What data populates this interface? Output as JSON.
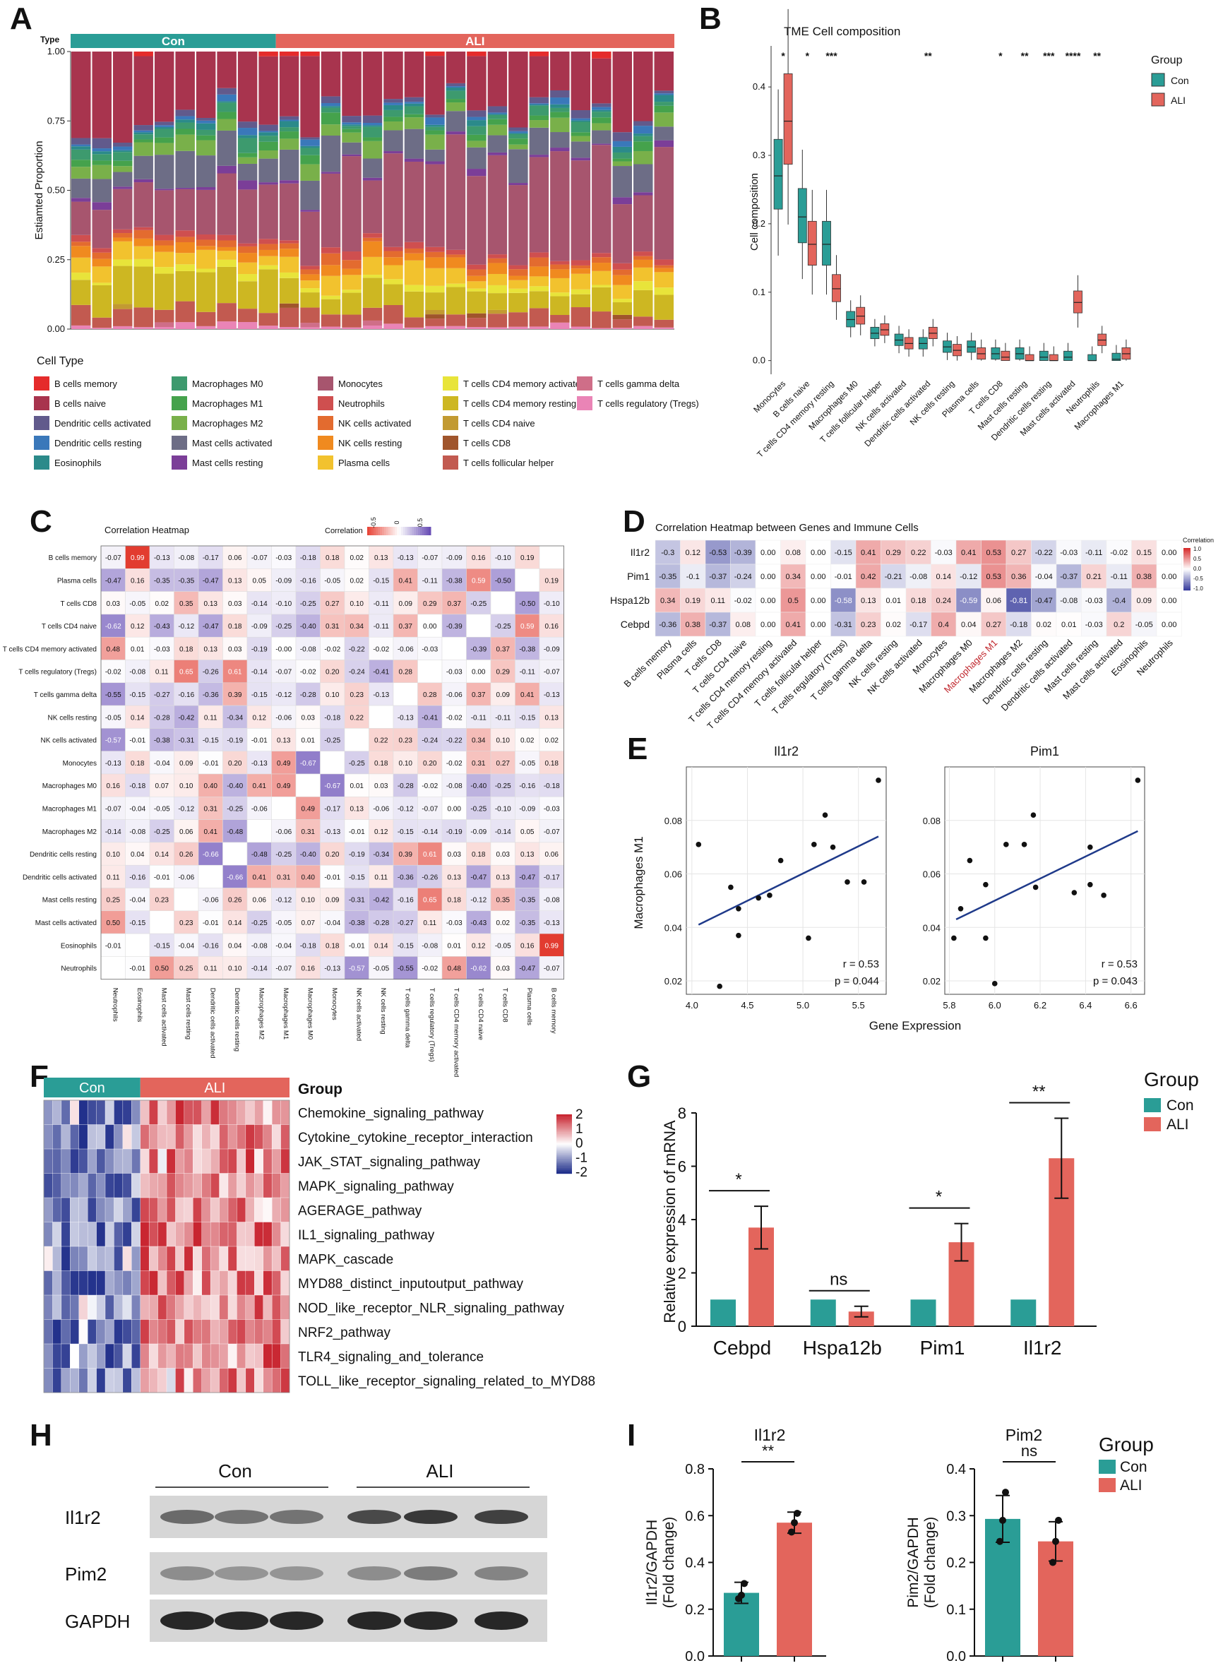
{
  "panel_labels": [
    "A",
    "B",
    "C",
    "D",
    "E",
    "F",
    "G",
    "H",
    "I"
  ],
  "colors": {
    "con": "#2a9d96",
    "ali": "#e3655c",
    "blue": "#3b4fa0",
    "red": "#d23a3a"
  },
  "panelA": {
    "type_label": "Type",
    "groups": [
      "Con",
      "ALI"
    ],
    "ylabel": "Estiamted Proportion",
    "yticks": [
      "1.00",
      "0.75",
      "0.50",
      "0.25",
      "0.00"
    ],
    "legend_title": "Cell Type",
    "legend": [
      {
        "name": "B cells memory",
        "color": "#e52b2b"
      },
      {
        "name": "B cells naive",
        "color": "#a8344e"
      },
      {
        "name": "Dendritic cells activated",
        "color": "#615a8c"
      },
      {
        "name": "Dendritic cells resting",
        "color": "#3a78ba"
      },
      {
        "name": "Eosinophils",
        "color": "#2b8a8a"
      },
      {
        "name": "Macrophages M0",
        "color": "#3d9a6e"
      },
      {
        "name": "Macrophages M1",
        "color": "#45a24c"
      },
      {
        "name": "Macrophages M2",
        "color": "#79b04a"
      },
      {
        "name": "Mast cells activated",
        "color": "#6d6d86"
      },
      {
        "name": "Mast cells resting",
        "color": "#7b3e98"
      },
      {
        "name": "Monocytes",
        "color": "#a7556e"
      },
      {
        "name": "Neutrophils",
        "color": "#cf4f4f"
      },
      {
        "name": "NK cells activated",
        "color": "#e36b2f"
      },
      {
        "name": "NK cells resting",
        "color": "#f08a1f"
      },
      {
        "name": "Plasma cells",
        "color": "#f2c22e"
      },
      {
        "name": "T cells CD4 memory activated",
        "color": "#e8e43a"
      },
      {
        "name": "T cells CD4 memory resting",
        "color": "#cdb722"
      },
      {
        "name": "T cells CD4 naive",
        "color": "#c29a32"
      },
      {
        "name": "T cells CD8",
        "color": "#a0552c"
      },
      {
        "name": "T cells follicular helper",
        "color": "#c25a50"
      },
      {
        "name": "T cells gamma delta",
        "color": "#cf6e88"
      },
      {
        "name": "T cells regulatory (Tregs)",
        "color": "#ea84b6"
      }
    ]
  },
  "panelB": {
    "title": "TME Cell composition",
    "ylabel": "Cell composition",
    "legend_title": "Group",
    "legend": [
      "Con",
      "ALI"
    ],
    "chart_data": {
      "type": "box",
      "categories": [
        "Monocytes",
        "B cells naive",
        "T cells CD4 memory resting",
        "Macrophages M0",
        "T cells follicular helper",
        "NK cells activated",
        "Dendritic cells activated",
        "NK cells resting",
        "Plasma cells",
        "T cells CD8",
        "Mast cells resting",
        "Dendritic cells resting",
        "Mast cells activated",
        "Neutrophils",
        "Macrophages M1"
      ],
      "significance": [
        "*",
        "*",
        "***",
        "",
        "",
        "",
        "**",
        "",
        "",
        "*",
        "**",
        "***",
        "****",
        "**",
        ""
      ],
      "yticks": [
        0.0,
        0.1,
        0.2,
        0.3,
        0.4
      ],
      "ylim": [
        -0.02,
        0.46
      ],
      "con_median": [
        0.27,
        0.21,
        0.17,
        0.06,
        0.04,
        0.03,
        0.025,
        0.02,
        0.02,
        0.01,
        0.01,
        0.005,
        0.005,
        0.0,
        0.002
      ],
      "ali_median": [
        0.35,
        0.17,
        0.105,
        0.065,
        0.045,
        0.025,
        0.04,
        0.015,
        0.01,
        0.005,
        0.0,
        0.0,
        0.085,
        0.03,
        0.01
      ]
    }
  },
  "panelC": {
    "title": "Correlation Heatmap",
    "legend_label": "Correlation",
    "legend_ticks": [
      "-0.5",
      "0",
      "0.5"
    ],
    "rows": [
      "B cells memory",
      "Plasma cells",
      "T cells CD8",
      "T cells CD4 naive",
      "T cells CD4 memory activated",
      "T cells regulatory (Tregs)",
      "T cells gamma delta",
      "NK cells resting",
      "NK cells activated",
      "Monocytes",
      "Macrophages M0",
      "Macrophages M1",
      "Macrophages M2",
      "Dendritic cells resting",
      "Dendritic cells activated",
      "Mast cells resting",
      "Mast cells activated",
      "Eosinophils",
      "Neutrophils"
    ],
    "cols": [
      "Neutrophils",
      "Eosinophils",
      "Mast cells activated",
      "Mast cells resting",
      "Dendritic cells activated",
      "Dendritic cells resting",
      "Macrophages M2",
      "Macrophages M1",
      "Macrophages M0",
      "Monocytes",
      "NK cells activated",
      "NK cells resting",
      "T cells gamma delta",
      "T cells regulatory (Tregs)",
      "T cells CD4 memory activated",
      "T cells CD4 naive",
      "T cells CD8",
      "Plasma cells",
      "B cells memory"
    ],
    "values": [
      [
        "-0.07",
        "0.99",
        "-0.13",
        "-0.08",
        "-0.17",
        "0.06",
        "-0.07",
        "-0.03",
        "-0.18",
        "0.18",
        "0.02",
        "0.13",
        "-0.13",
        "-0.07",
        "-0.09",
        "0.16",
        "-0.10",
        "0.19",
        ""
      ],
      [
        "-0.47",
        "0.16",
        "-0.35",
        "-0.35",
        "-0.47",
        "0.13",
        "0.05",
        "-0.09",
        "-0.16",
        "-0.05",
        "0.02",
        "-0.15",
        "0.41",
        "-0.11",
        "-0.38",
        "0.59",
        "-0.50",
        "",
        "0.19"
      ],
      [
        "0.03",
        "-0.05",
        "0.02",
        "0.35",
        "0.13",
        "0.03",
        "-0.14",
        "-0.10",
        "-0.25",
        "0.27",
        "0.10",
        "-0.11",
        "0.09",
        "0.29",
        "0.37",
        "-0.25",
        "",
        "-0.50",
        "-0.10"
      ],
      [
        "-0.62",
        "0.12",
        "-0.43",
        "-0.12",
        "-0.47",
        "0.18",
        "-0.09",
        "-0.25",
        "-0.40",
        "0.31",
        "0.34",
        "-0.11",
        "0.37",
        "0.00",
        "-0.39",
        "",
        "-0.25",
        "0.59",
        "0.16"
      ],
      [
        "0.48",
        "0.01",
        "-0.03",
        "0.18",
        "0.13",
        "0.03",
        "-0.19",
        "-0.00",
        "-0.08",
        "-0.02",
        "-0.22",
        "-0.02",
        "-0.06",
        "-0.03",
        "",
        "-0.39",
        "0.37",
        "-0.38",
        "-0.09"
      ],
      [
        "-0.02",
        "-0.08",
        "0.11",
        "0.65",
        "-0.26",
        "0.61",
        "-0.14",
        "-0.07",
        "-0.02",
        "0.20",
        "-0.24",
        "-0.41",
        "0.28",
        "",
        "-0.03",
        "0.00",
        "0.29",
        "-0.11",
        "-0.07"
      ],
      [
        "-0.55",
        "-0.15",
        "-0.27",
        "-0.16",
        "-0.36",
        "0.39",
        "-0.15",
        "-0.12",
        "-0.28",
        "0.10",
        "0.23",
        "-0.13",
        "",
        "0.28",
        "-0.06",
        "0.37",
        "0.09",
        "0.41",
        "-0.13"
      ],
      [
        "-0.05",
        "0.14",
        "-0.28",
        "-0.42",
        "0.11",
        "-0.34",
        "0.12",
        "-0.06",
        "0.03",
        "-0.18",
        "0.22",
        "",
        "-0.13",
        "-0.41",
        "-0.02",
        "-0.11",
        "-0.11",
        "-0.15",
        "0.13"
      ],
      [
        "-0.57",
        "-0.01",
        "-0.38",
        "-0.31",
        "-0.15",
        "-0.19",
        "-0.01",
        "0.13",
        "0.01",
        "-0.25",
        "",
        "0.22",
        "0.23",
        "-0.24",
        "-0.22",
        "0.34",
        "0.10",
        "0.02",
        "0.02"
      ],
      [
        "-0.13",
        "0.18",
        "-0.04",
        "0.09",
        "-0.01",
        "0.20",
        "-0.13",
        "0.49",
        "-0.67",
        "",
        "-0.25",
        "0.18",
        "0.10",
        "0.20",
        "-0.02",
        "0.31",
        "0.27",
        "-0.05",
        "0.18"
      ],
      [
        "0.16",
        "-0.18",
        "0.07",
        "0.10",
        "0.40",
        "-0.40",
        "0.41",
        "0.49",
        "",
        "-0.67",
        "0.01",
        "0.03",
        "-0.28",
        "-0.02",
        "-0.08",
        "-0.40",
        "-0.25",
        "-0.16",
        "-0.18"
      ],
      [
        "-0.07",
        "-0.04",
        "-0.05",
        "-0.12",
        "0.31",
        "-0.25",
        "-0.06",
        "",
        "0.49",
        "-0.17",
        "0.13",
        "-0.06",
        "-0.12",
        "-0.07",
        "0.00",
        "-0.25",
        "-0.10",
        "-0.09",
        "-0.03"
      ],
      [
        "-0.14",
        "-0.08",
        "-0.25",
        "0.06",
        "0.41",
        "-0.48",
        "",
        "-0.06",
        "0.31",
        "-0.13",
        "-0.01",
        "0.12",
        "-0.15",
        "-0.14",
        "-0.19",
        "-0.09",
        "-0.14",
        "0.05",
        "-0.07"
      ],
      [
        "0.10",
        "0.04",
        "0.14",
        "0.26",
        "-0.66",
        "",
        "-0.48",
        "-0.25",
        "-0.40",
        "0.20",
        "-0.19",
        "-0.34",
        "0.39",
        "0.61",
        "0.03",
        "0.18",
        "0.03",
        "0.13",
        "0.06"
      ],
      [
        "0.11",
        "-0.16",
        "-0.01",
        "-0.06",
        "",
        "-0.66",
        "0.41",
        "0.31",
        "0.40",
        "-0.01",
        "-0.15",
        "0.11",
        "-0.36",
        "-0.26",
        "0.13",
        "-0.47",
        "0.13",
        "-0.47",
        "-0.17"
      ],
      [
        "0.25",
        "-0.04",
        "0.23",
        "",
        "-0.06",
        "0.26",
        "0.06",
        "-0.12",
        "0.10",
        "0.09",
        "-0.31",
        "-0.42",
        "-0.16",
        "0.65",
        "0.18",
        "-0.12",
        "0.35",
        "-0.35",
        "-0.08"
      ],
      [
        "0.50",
        "-0.15",
        "",
        "0.23",
        "-0.01",
        "0.14",
        "-0.25",
        "-0.05",
        "0.07",
        "-0.04",
        "-0.38",
        "-0.28",
        "-0.27",
        "0.11",
        "-0.03",
        "-0.43",
        "0.02",
        "-0.35",
        "-0.13"
      ],
      [
        "-0.01",
        "",
        "-0.15",
        "-0.04",
        "-0.16",
        "0.04",
        "-0.08",
        "-0.04",
        "-0.18",
        "0.18",
        "-0.01",
        "0.14",
        "-0.15",
        "-0.08",
        "0.01",
        "0.12",
        "-0.05",
        "0.16",
        "0.99"
      ],
      [
        "",
        "-0.01",
        "0.50",
        "0.25",
        "0.11",
        "0.10",
        "-0.14",
        "-0.07",
        "0.16",
        "-0.13",
        "-0.57",
        "-0.05",
        "-0.55",
        "-0.02",
        "0.48",
        "-0.62",
        "0.03",
        "-0.47",
        "-0.07"
      ]
    ]
  },
  "panelD": {
    "title": "Correlation Heatmap between Genes and Immune Cells",
    "legend_label": "Correlation",
    "legend_ticks": [
      "1.0",
      "0.5",
      "0.0",
      "-0.5",
      "-1.0"
    ],
    "rows": [
      "Il1r2",
      "Pim1",
      "Hspa12b",
      "Cebpd"
    ],
    "cols": [
      "B cells memory",
      "Plasma cells",
      "T cells CD8",
      "T cells CD4 naive",
      "T cells CD4 memory resting",
      "T cells CD4 memory activated",
      "T cells follicular helper",
      "T cells regulatory (Tregs)",
      "T cells gamma delta",
      "NK cells resting",
      "NK cells activated",
      "Monocytes",
      "Macrophages M0",
      "Macrophages M1",
      "Macrophages M2",
      "Dendritic cells resting",
      "Dendritic cells activated",
      "Mast cells resting",
      "Mast cells activated",
      "Eosinophils",
      "Neutrophils"
    ],
    "highlight_col": "Macrophages M1",
    "values": [
      [
        "-0.3",
        "0.12",
        "-0.53",
        "-0.39",
        "0.00",
        "0.08",
        "0.00",
        "-0.15",
        "0.41",
        "0.29",
        "0.22",
        "-0.03",
        "0.41",
        "0.53",
        "0.27",
        "-0.22",
        "-0.03",
        "-0.11",
        "-0.02",
        "0.15",
        "0.00"
      ],
      [
        "-0.35",
        "-0.1",
        "-0.37",
        "-0.24",
        "0.00",
        "0.34",
        "0.00",
        "-0.01",
        "0.42",
        "-0.21",
        "-0.08",
        "0.14",
        "-0.12",
        "0.53",
        "0.36",
        "-0.04",
        "-0.37",
        "0.21",
        "-0.11",
        "0.38",
        "0.00"
      ],
      [
        "0.34",
        "0.19",
        "0.11",
        "-0.02",
        "0.00",
        "0.5",
        "0.00",
        "-0.58",
        "0.13",
        "0.01",
        "0.18",
        "0.24",
        "-0.59",
        "0.06",
        "-0.81",
        "-0.47",
        "-0.08",
        "-0.03",
        "-0.4",
        "0.09",
        "0.00"
      ],
      [
        "-0.36",
        "0.38",
        "-0.37",
        "0.08",
        "0.00",
        "0.41",
        "0.00",
        "-0.31",
        "0.23",
        "0.02",
        "-0.17",
        "0.4",
        "0.04",
        "0.27",
        "-0.18",
        "0.02",
        "0.01",
        "-0.03",
        "0.2",
        "-0.05",
        "0.00"
      ]
    ]
  },
  "panelE": {
    "ylabel": "Macrophages M1",
    "xlabel": "Gene Expression",
    "plots": [
      {
        "title": "Il1r2",
        "r": "r = 0.53",
        "p": "p = 0.044",
        "xticks": [
          4.0,
          4.5,
          5.0,
          5.5
        ],
        "xlim": [
          3.95,
          5.75
        ],
        "points": [
          [
            4.06,
            0.071
          ],
          [
            4.25,
            0.018
          ],
          [
            4.35,
            0.055
          ],
          [
            4.42,
            0.047
          ],
          [
            4.42,
            0.037
          ],
          [
            4.6,
            0.051
          ],
          [
            4.7,
            0.052
          ],
          [
            4.8,
            0.065
          ],
          [
            5.05,
            0.036
          ],
          [
            5.1,
            0.071
          ],
          [
            5.2,
            0.082
          ],
          [
            5.27,
            0.07
          ],
          [
            5.4,
            0.057
          ],
          [
            5.55,
            0.057
          ],
          [
            5.68,
            0.095
          ]
        ],
        "line": [
          [
            4.06,
            0.041
          ],
          [
            5.68,
            0.074
          ]
        ]
      },
      {
        "title": "Pim1",
        "r": "r = 0.53",
        "p": "p = 0.043",
        "xticks": [
          5.8,
          6.0,
          6.2,
          6.4,
          6.6
        ],
        "xlim": [
          5.78,
          6.66
        ],
        "points": [
          [
            5.82,
            0.036
          ],
          [
            5.85,
            0.047
          ],
          [
            5.89,
            0.065
          ],
          [
            5.96,
            0.056
          ],
          [
            5.96,
            0.036
          ],
          [
            6.0,
            0.019
          ],
          [
            6.05,
            0.071
          ],
          [
            6.13,
            0.071
          ],
          [
            6.17,
            0.082
          ],
          [
            6.18,
            0.055
          ],
          [
            6.35,
            0.053
          ],
          [
            6.42,
            0.07
          ],
          [
            6.42,
            0.056
          ],
          [
            6.48,
            0.052
          ],
          [
            6.63,
            0.095
          ]
        ],
        "line": [
          [
            5.83,
            0.043
          ],
          [
            6.63,
            0.076
          ]
        ]
      }
    ],
    "yticks": [
      0.02,
      0.04,
      0.06,
      0.08
    ],
    "ylim": [
      0.015,
      0.1
    ]
  },
  "panelF": {
    "groups": [
      "Con",
      "ALI"
    ],
    "group_label": "Group",
    "pathways": [
      "Chemokine_signaling_pathway",
      "Cytokine_cytokine_receptor_interaction",
      "JAK_STAT_signaling_pathway",
      "MAPK_signaling_pathway",
      "AGERAGE_pathway",
      "IL1_signaling_pathway",
      "MAPK_cascade",
      "MYD88_distinct_inputoutput_pathway",
      "NOD_like_receptor_NLR_signaling_pathway",
      "NRF2_pathway",
      "TLR4_signaling_and_tolerance",
      "TOLL_like_receptor_signaling_related_to_MYD88"
    ],
    "scale_ticks": [
      "2",
      "1",
      "0",
      "-1",
      "-2"
    ]
  },
  "panelG": {
    "ylabel": "Relative expression of mRNA",
    "legend_title": "Group",
    "legend": [
      "Con",
      "ALI"
    ],
    "chart_data": {
      "type": "bar",
      "categories": [
        "Cebpd",
        "Hspa12b",
        "Pim1",
        "Il1r2"
      ],
      "series": [
        {
          "name": "Con",
          "values": [
            1,
            1,
            1,
            1
          ]
        },
        {
          "name": "ALI",
          "values": [
            3.7,
            0.55,
            3.15,
            6.3
          ],
          "error": [
            0.8,
            0.2,
            0.7,
            1.5
          ]
        }
      ],
      "significance": [
        "*",
        "ns",
        "*",
        "**"
      ],
      "ylim": [
        0,
        8
      ],
      "yticks": [
        0,
        2,
        4,
        6,
        8
      ]
    }
  },
  "panelH": {
    "groups": [
      "Con",
      "ALI"
    ],
    "bands": [
      "Il1r2",
      "Pim2",
      "GAPDH"
    ]
  },
  "panelI": {
    "legend_title": "Group",
    "legend": [
      "Con",
      "ALI"
    ],
    "charts": [
      {
        "title": "Il1r2",
        "ylabel1": "Il1r2/GAPDH",
        "ylabel2": "(Fold change)",
        "sig": "**",
        "yticks": [
          0.0,
          0.2,
          0.4,
          0.6,
          0.8
        ],
        "ylim": [
          0,
          0.8
        ],
        "values": [
          0.27,
          0.57
        ],
        "error": [
          0.045,
          0.045
        ],
        "points": [
          [
            0.245,
            0.26,
            0.31
          ],
          [
            0.53,
            0.57,
            0.61
          ]
        ]
      },
      {
        "title": "Pim2",
        "ylabel1": "Pim2/GAPDH",
        "ylabel2": "(Fold change)",
        "sig": "ns",
        "yticks": [
          0.0,
          0.1,
          0.2,
          0.3,
          0.4
        ],
        "ylim": [
          0,
          0.4
        ],
        "values": [
          0.293,
          0.245
        ],
        "error": [
          0.05,
          0.042
        ],
        "points": [
          [
            0.245,
            0.29,
            0.35
          ],
          [
            0.2,
            0.245,
            0.29
          ]
        ]
      }
    ]
  }
}
